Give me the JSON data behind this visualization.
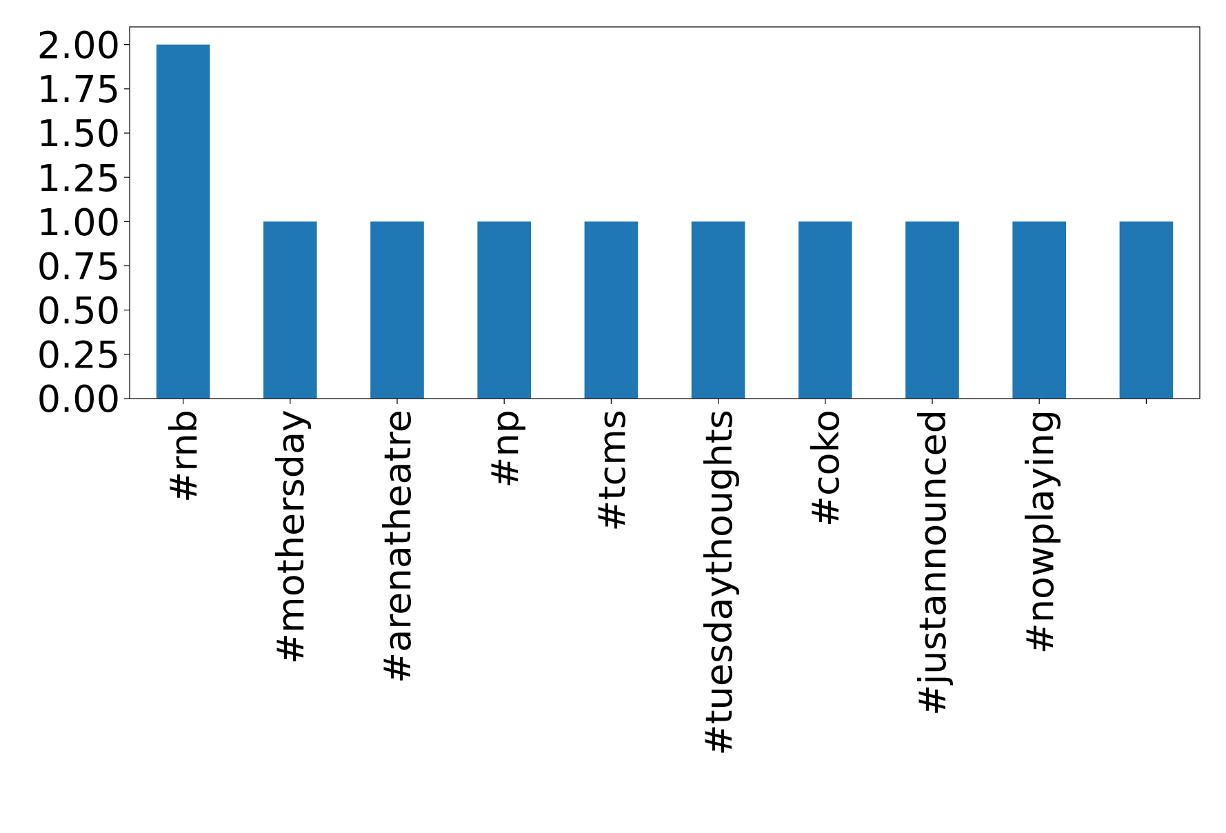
{
  "chart_data": {
    "type": "bar",
    "categories": [
      "#rnb",
      "#mothersday",
      "#arenatheatre",
      "#np",
      "#tcms",
      "#tuesdaythoughts",
      "#coko",
      "#justannounced",
      "#nowplaying",
      null
    ],
    "values": [
      2,
      1,
      1,
      1,
      1,
      1,
      1,
      1,
      1,
      1
    ],
    "color": "#1f77b4",
    "ylim": [
      0,
      2.1
    ],
    "yticks": [
      {
        "value": 0,
        "label": "0.00"
      },
      {
        "value": 0.25,
        "label": "0.25"
      },
      {
        "value": 0.5,
        "label": "0.50"
      },
      {
        "value": 0.75,
        "label": "0.75"
      },
      {
        "value": 1,
        "label": "1.00"
      },
      {
        "value": 1.25,
        "label": "1.25"
      },
      {
        "value": 1.5,
        "label": "1.50"
      },
      {
        "value": 1.75,
        "label": "1.75"
      },
      {
        "value": 2,
        "label": "2.00"
      }
    ],
    "grid": false
  }
}
